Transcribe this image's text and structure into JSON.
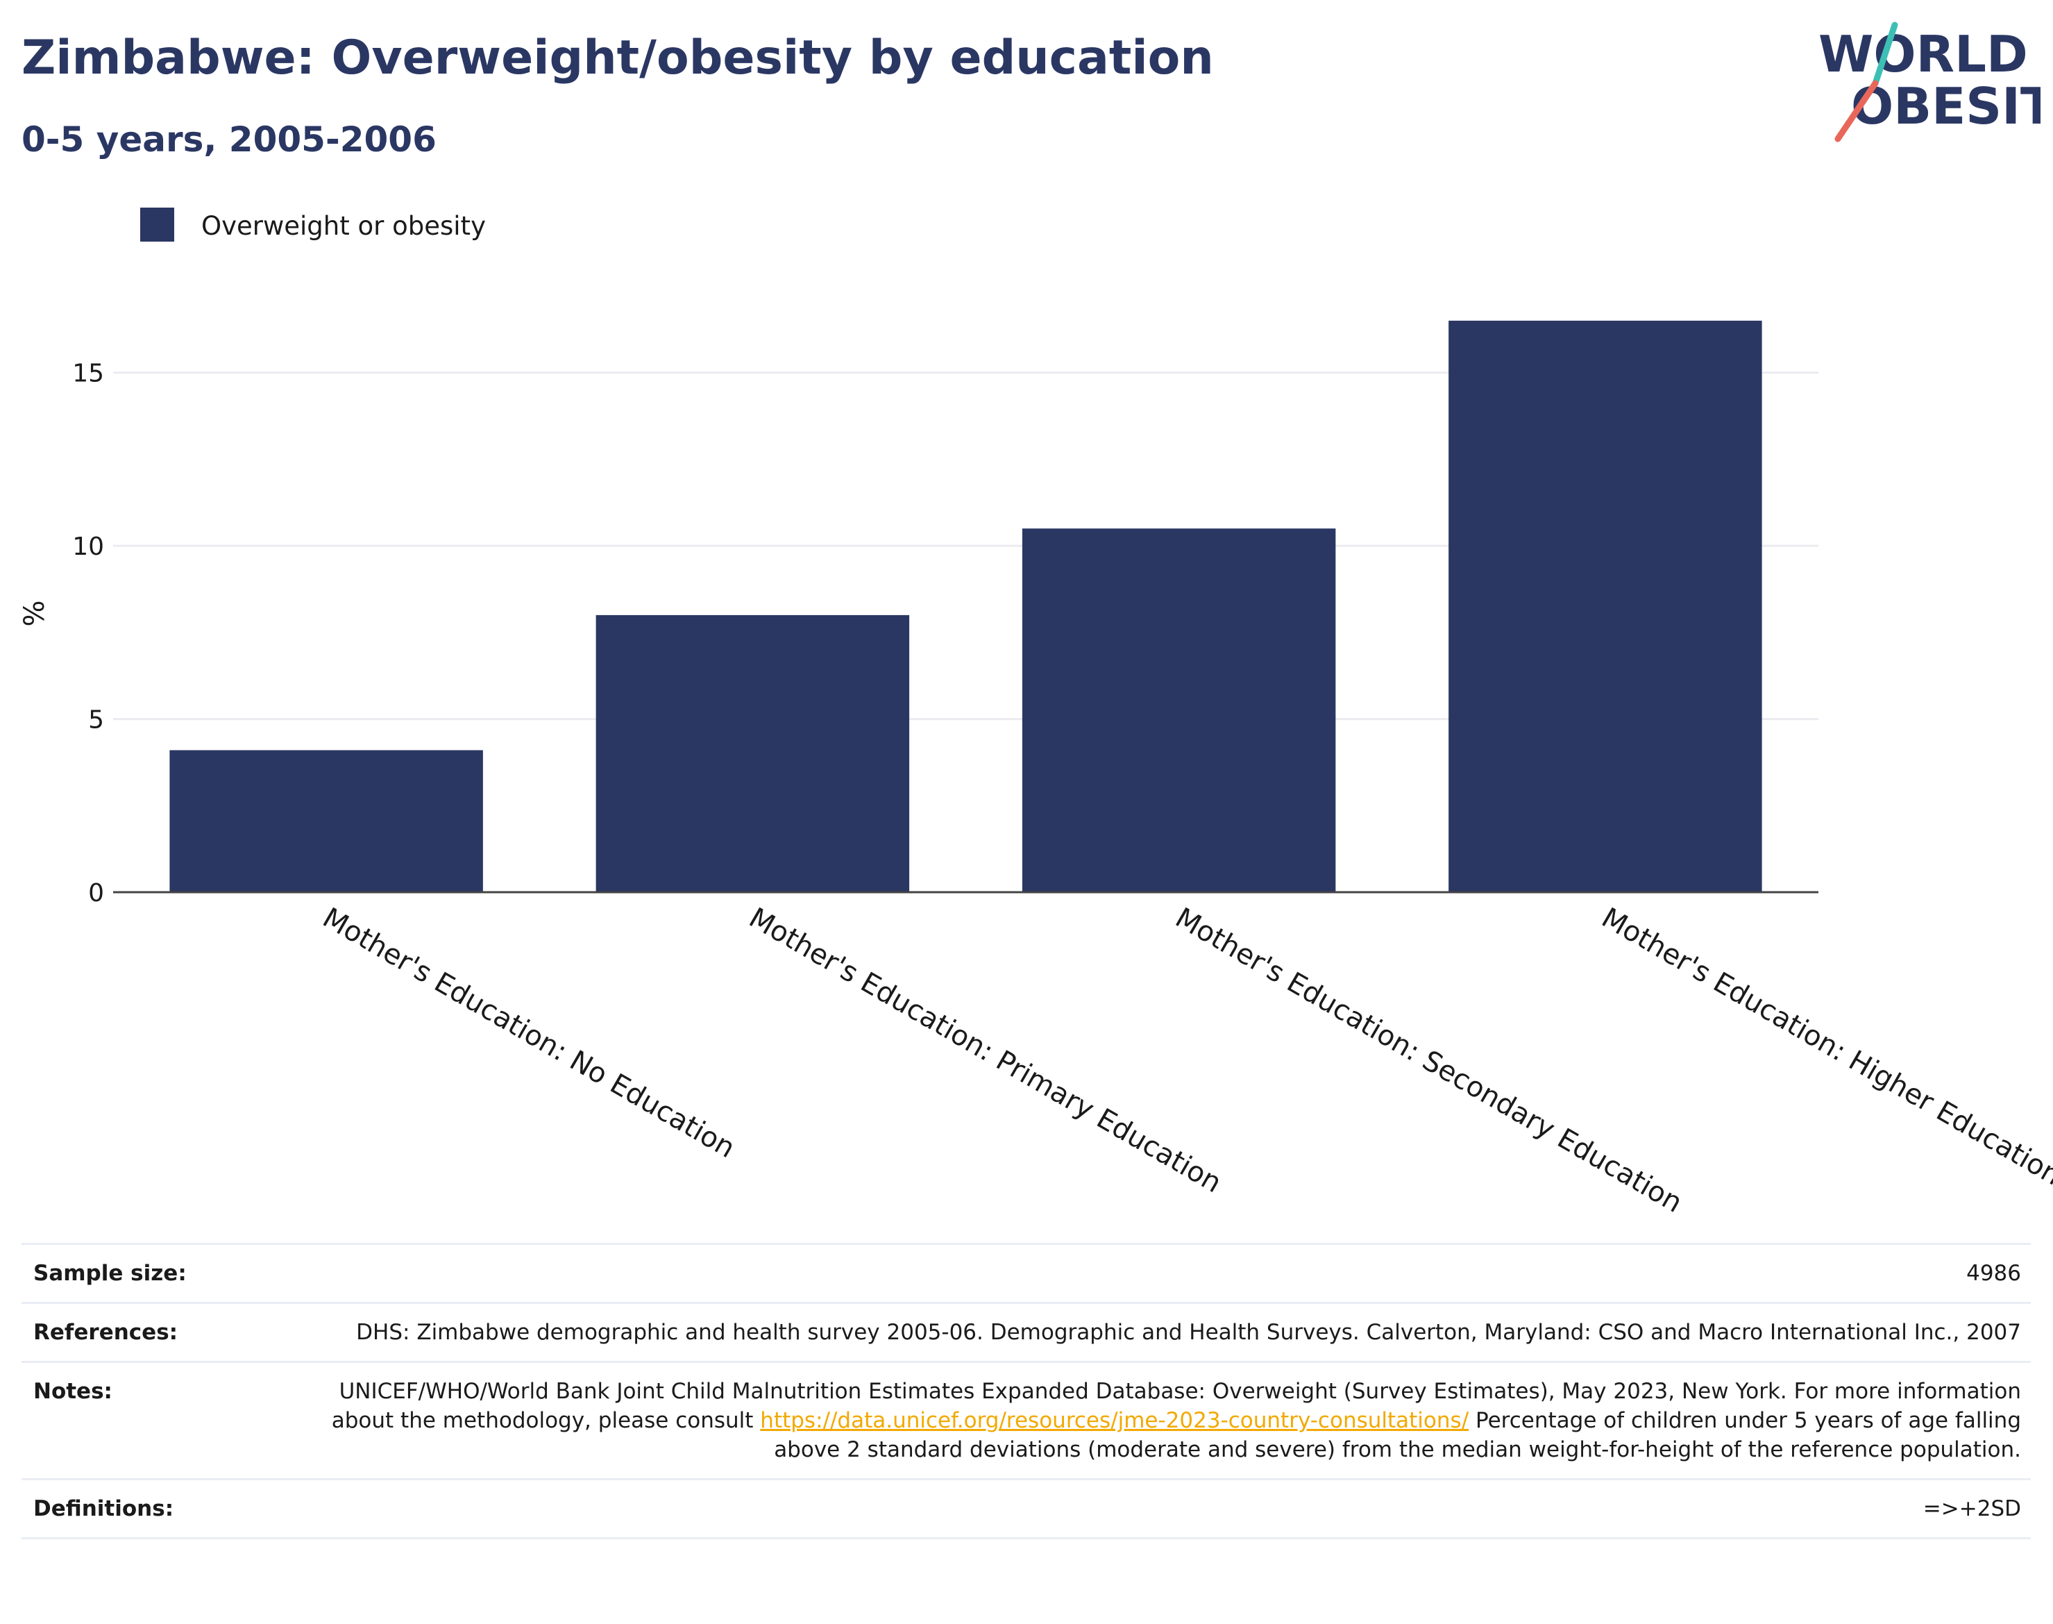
{
  "header": {
    "title": "Zimbabwe: Overweight/obesity by education",
    "subtitle": "0-5 years, 2005-2006"
  },
  "logo": {
    "line1": "WORLD",
    "line2": "OBESITY",
    "colors": {
      "text": "#2b3763",
      "slash_top": "#3cbfb4",
      "slash_bottom": "#e8675a"
    }
  },
  "chart_data": {
    "type": "bar",
    "title": "Zimbabwe: Overweight/obesity by education",
    "subtitle": "0-5 years, 2005-2006",
    "categories": [
      "Mother's Education: No Education",
      "Mother's Education: Primary Education",
      "Mother's Education: Secondary Education",
      "Mother's Education: Higher Education"
    ],
    "series": [
      {
        "name": "Overweight or obesity",
        "values": [
          4.1,
          8.0,
          10.5,
          16.5
        ],
        "color": "#2b3763"
      }
    ],
    "xlabel": "",
    "ylabel": "%",
    "ylim": [
      0,
      17.7
    ],
    "yticks": [
      0,
      5,
      10,
      15
    ],
    "grid": true,
    "legend_position": "top-left"
  },
  "info": {
    "sample_size": {
      "label": "Sample size:",
      "value": "4986"
    },
    "references": {
      "label": "References:",
      "value": "DHS: Zimbabwe demographic and health survey 2005-06. Demographic and Health Surveys. Calverton, Maryland: CSO and Macro International Inc., 2007"
    },
    "notes": {
      "label": "Notes:",
      "text_before": "UNICEF/WHO/World Bank Joint Child Malnutrition Estimates Expanded Database: Overweight (Survey Estimates), May 2023, New York. For more information about the methodology, please consult ",
      "link": "https://data.unicef.org/resources/jme-2023-country-consultations/",
      "text_after": " Percentage of children under 5 years of age falling above 2 standard deviations (moderate and severe) from the median weight-for-height of the reference population."
    },
    "definitions": {
      "label": "Definitions:",
      "value": "=>+2SD"
    }
  }
}
